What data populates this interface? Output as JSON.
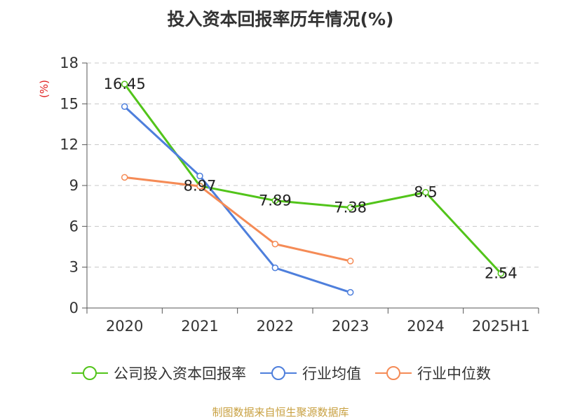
{
  "chart_data": {
    "type": "line",
    "title": "投入资本回报率历年情况(%)",
    "ylabel": "(%)",
    "categories": [
      "2020",
      "2021",
      "2022",
      "2023",
      "2024",
      "2025H1"
    ],
    "yticks": [
      "0",
      "3",
      "6",
      "9",
      "12",
      "15",
      "18"
    ],
    "ylim": [
      0,
      18
    ],
    "grid": true,
    "legend_position": "bottom",
    "series": [
      {
        "name": "公司投入资本回报率",
        "color": "#52c41a",
        "values": [
          16.45,
          8.97,
          7.89,
          7.38,
          8.5,
          2.54
        ],
        "labels": [
          "16.45",
          "8.97",
          "7.89",
          "7.38",
          "8.5",
          "2.54"
        ]
      },
      {
        "name": "行业均值",
        "color": "#4e7fdc",
        "values": [
          14.8,
          9.7,
          2.95,
          1.15,
          null,
          null
        ]
      },
      {
        "name": "行业中位数",
        "color": "#f58b56",
        "values": [
          9.6,
          8.95,
          4.7,
          3.45,
          null,
          null
        ]
      }
    ]
  },
  "source": "制图数据来自恒生聚源数据库"
}
